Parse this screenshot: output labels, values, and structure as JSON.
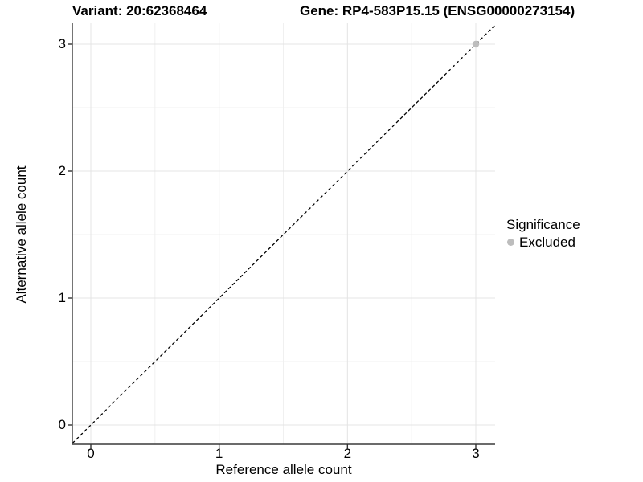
{
  "figure": {
    "title_left": "Variant: 20:62368464",
    "title_right": "Gene: RP4-583P15.15 (ENSG00000273154)"
  },
  "chart_data": {
    "type": "scatter",
    "title": "Variant: 20:62368464 / Gene: RP4-583P15.15 (ENSG00000273154)",
    "xlabel": "Reference allele count",
    "ylabel": "Alternative allele count",
    "xticks": [
      0,
      1,
      2,
      3
    ],
    "yticks": [
      0,
      1,
      2,
      3
    ],
    "xlim": [
      -0.14,
      3.15
    ],
    "ylim": [
      -0.15,
      3.16
    ],
    "grid": "on",
    "legend": {
      "title": "Significance",
      "position": "right",
      "entries": [
        {
          "label": "Excluded",
          "marker": "circle",
          "color": "#bdbdbd"
        }
      ]
    },
    "series": [
      {
        "name": "Excluded",
        "color": "#bdbdbd",
        "points": [
          [
            3,
            3
          ]
        ]
      }
    ],
    "reference_line": {
      "type": "identity",
      "equation": "y = x",
      "style": "dashed",
      "color": "#000000"
    }
  },
  "colors": {
    "background": "#ffffff",
    "major_grid": "#e4e4e4",
    "minor_grid": "#f0f0f0",
    "axis_line": "#3a3a3a",
    "tick_mark": "#333333",
    "point": "#bdbdbd",
    "text": "#000000"
  }
}
